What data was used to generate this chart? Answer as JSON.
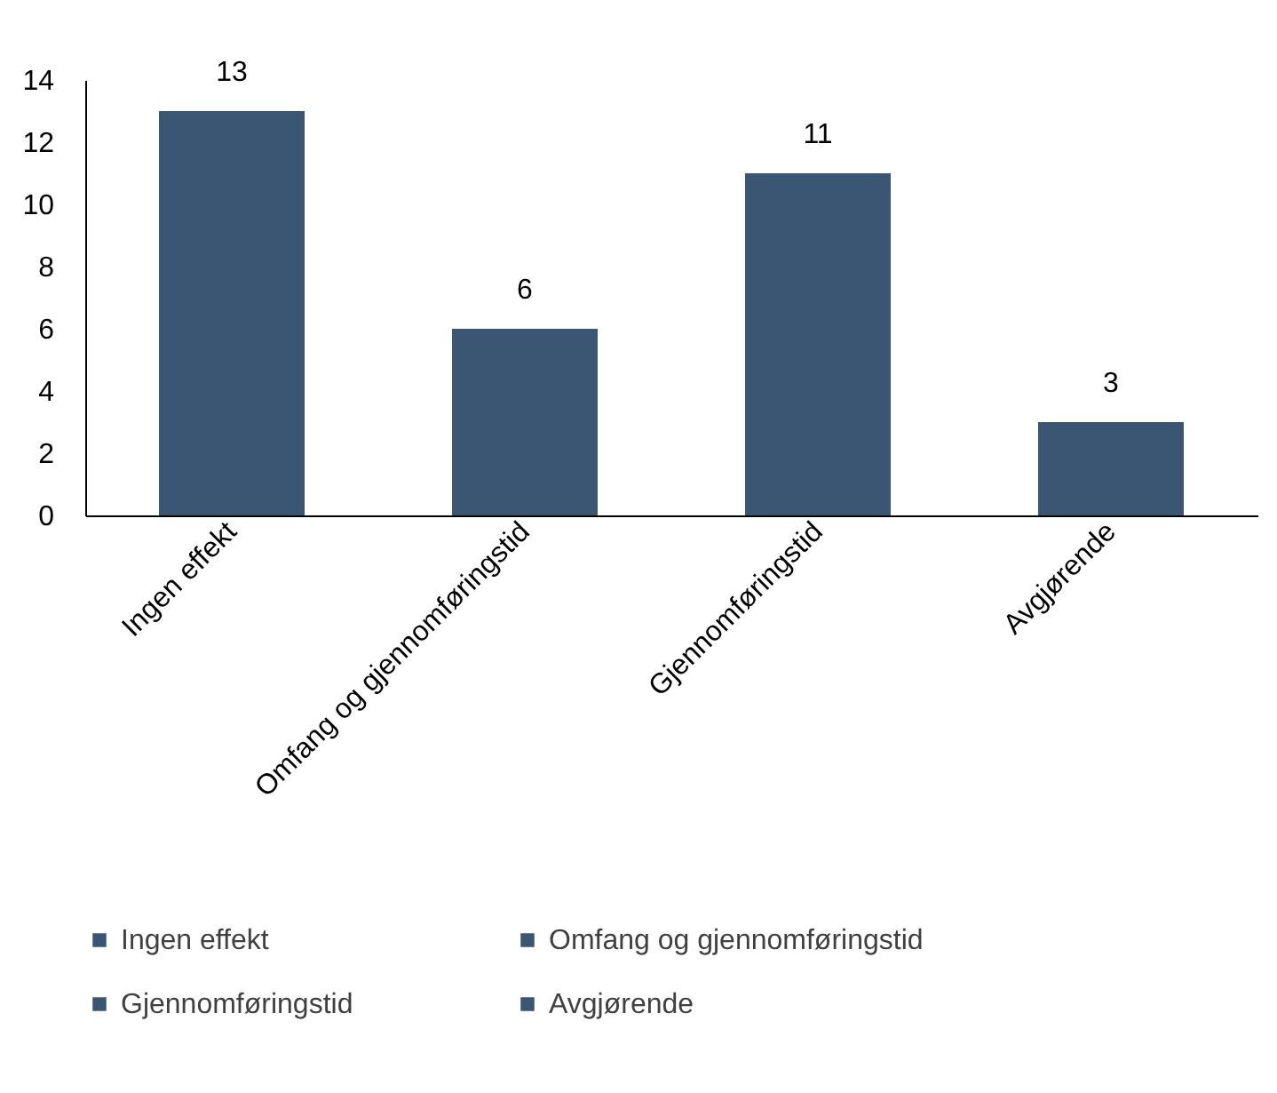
{
  "chart_data": {
    "type": "bar",
    "categories": [
      "Ingen effekt",
      "Omfang og gjennomføringstid",
      "Gjennomføringstid",
      "Avgjørende"
    ],
    "series": [
      {
        "name": "Ingen effekt",
        "color": "#3b5672",
        "values": [
          13,
          null,
          null,
          null
        ]
      },
      {
        "name": "Omfang og gjennomføringstid",
        "color": "#3b5672",
        "values": [
          null,
          6,
          null,
          null
        ]
      },
      {
        "name": "Gjennomføringstid",
        "color": "#3b5672",
        "values": [
          null,
          null,
          11,
          null
        ]
      },
      {
        "name": "Avgjørende",
        "color": "#3b5672",
        "values": [
          null,
          null,
          null,
          3
        ]
      }
    ],
    "ylim": [
      0,
      14
    ],
    "yticks": [
      0,
      2,
      4,
      6,
      8,
      10,
      12,
      14
    ],
    "grid": false,
    "data_labels": true,
    "legend": "bottom"
  }
}
